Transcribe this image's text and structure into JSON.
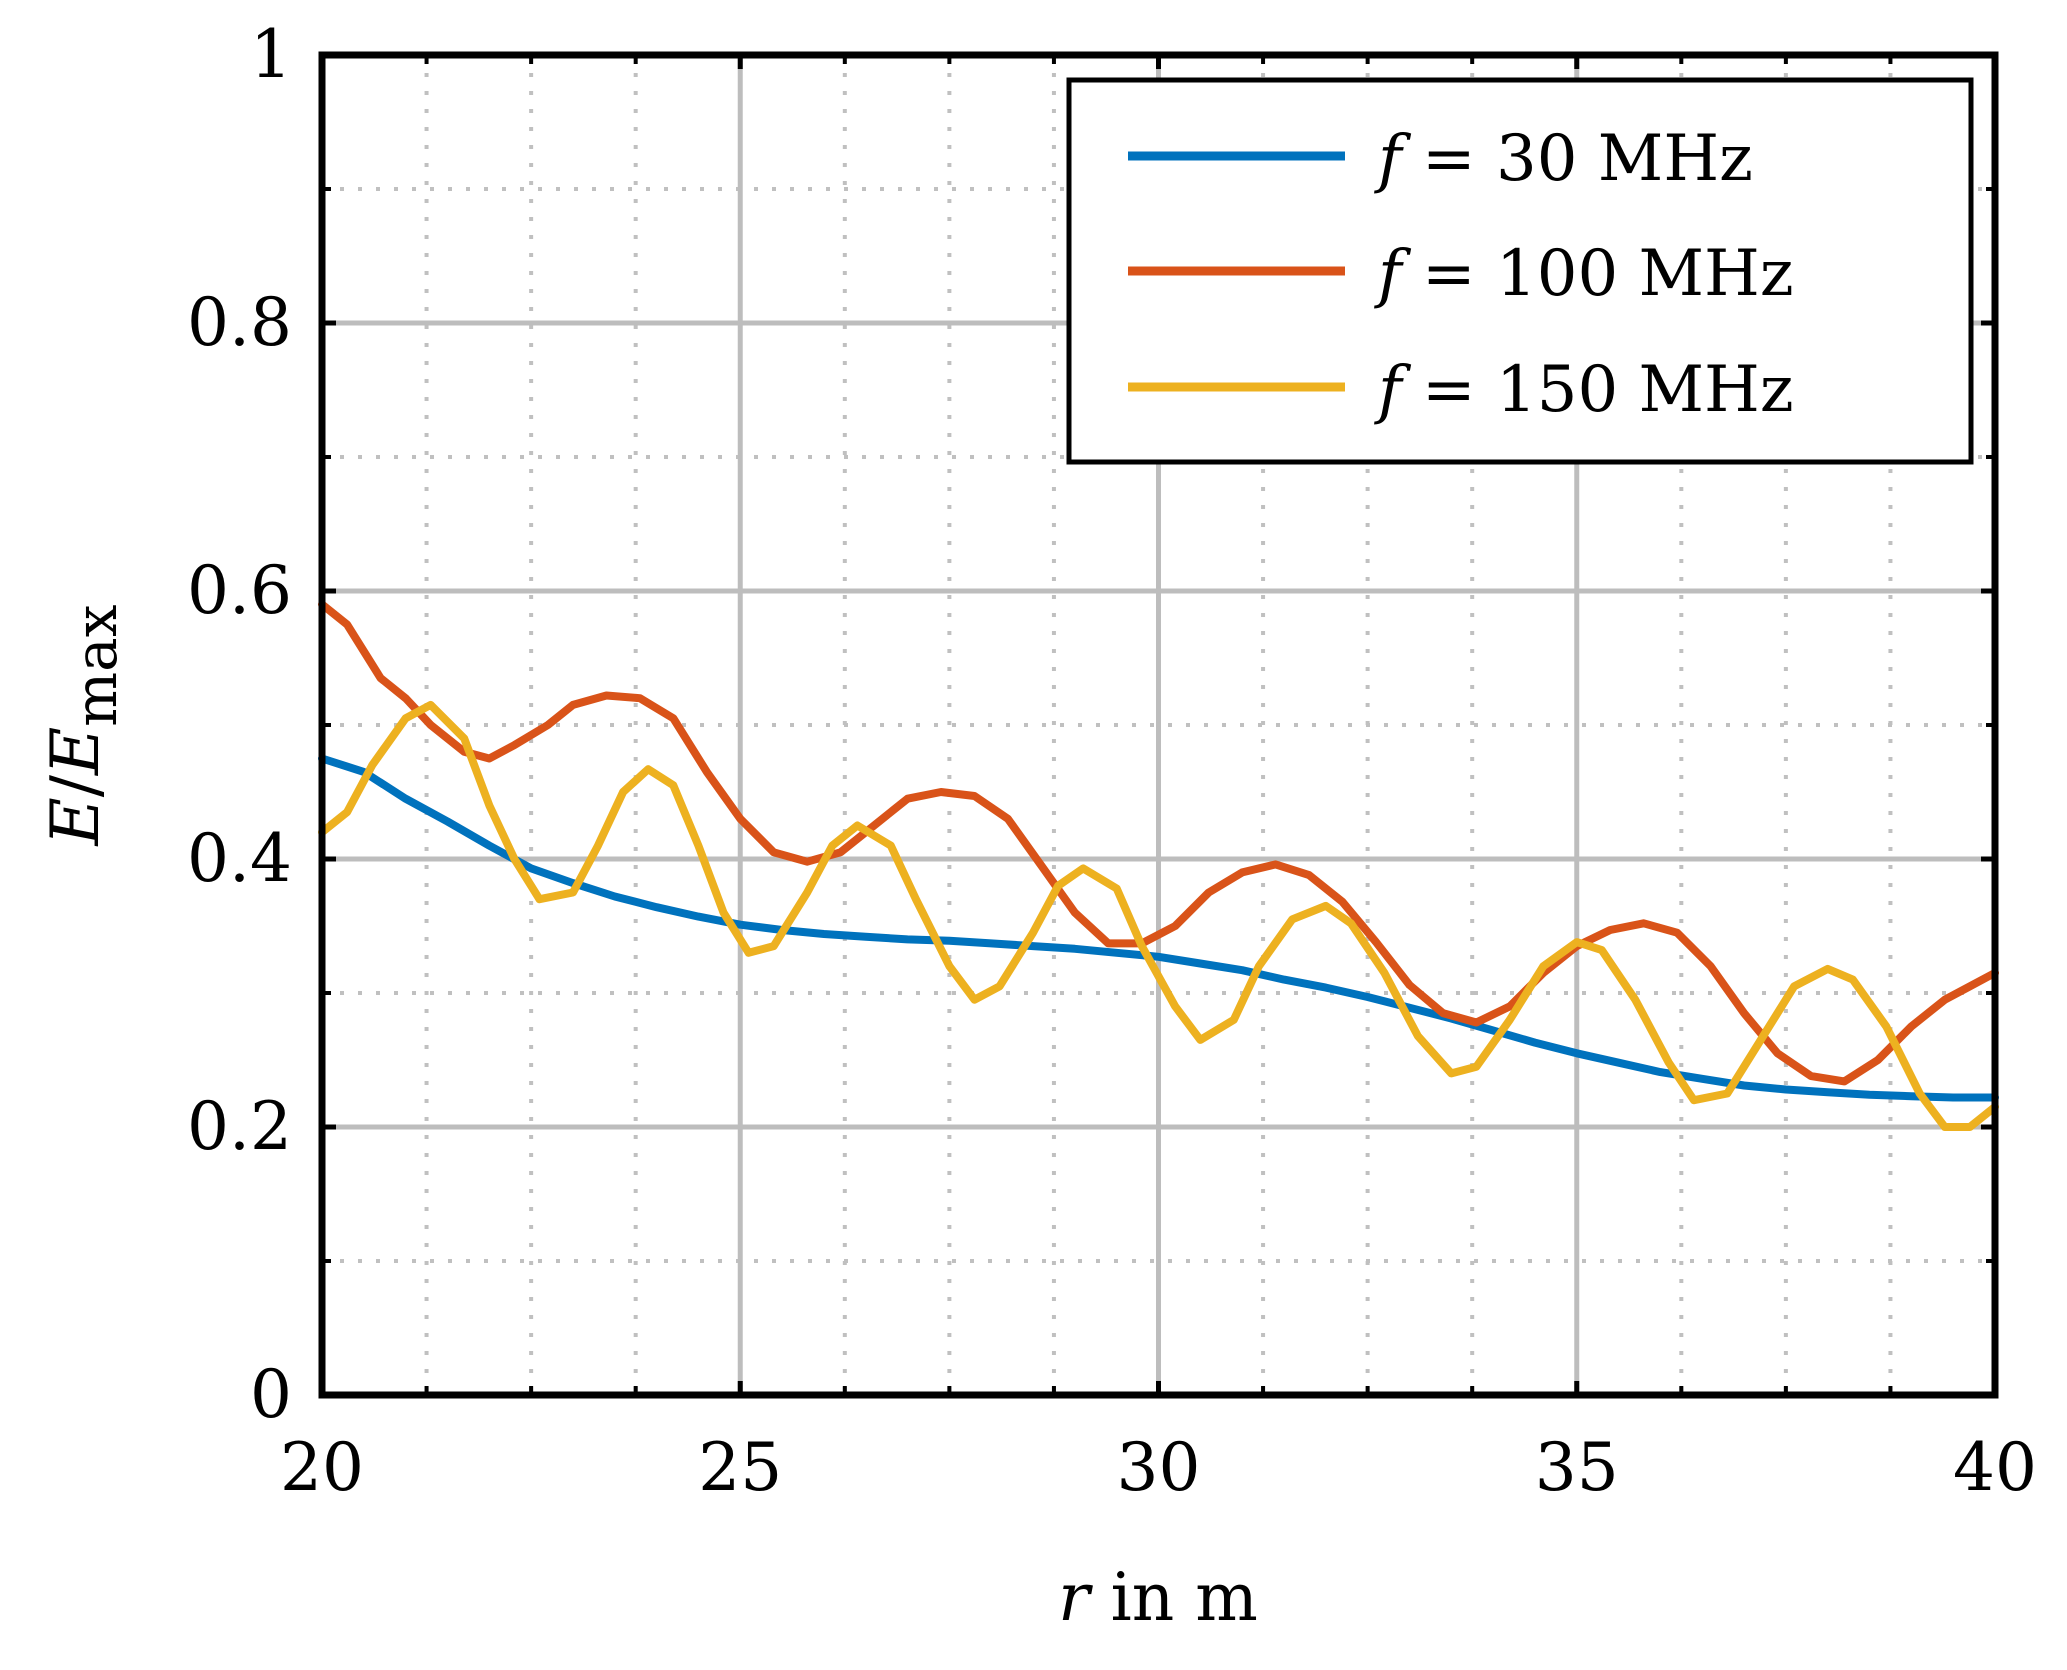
{
  "chart_data": {
    "type": "line",
    "title": "",
    "xlabel": {
      "var": "r",
      "unit": "in  m"
    },
    "ylabel": {
      "numerator": "E",
      "slash": "/",
      "denominator": "E",
      "subscript": "max"
    },
    "xlim": [
      20,
      40
    ],
    "ylim": [
      0,
      1
    ],
    "x_ticks": [
      20,
      25,
      30,
      35,
      40
    ],
    "y_ticks": [
      0,
      0.2,
      0.4,
      0.6,
      0.8,
      1
    ],
    "x_tick_labels": [
      "20",
      "25",
      "30",
      "35",
      "40"
    ],
    "y_tick_labels": [
      "0",
      "0.2",
      "0.4",
      "0.6",
      "0.8",
      "1"
    ],
    "x_minor_ticks": [
      21.25,
      22.5,
      23.75,
      26.25,
      27.5,
      28.75,
      31.25,
      32.5,
      33.75,
      36.25,
      37.5,
      38.75
    ],
    "y_minor_ticks": [
      0.1,
      0.3,
      0.5,
      0.7,
      0.9
    ],
    "grid": true,
    "legend_position": "top-right",
    "series": [
      {
        "name": "f = 30 MHz",
        "label_var": "f",
        "label_rest": " = 30 MHz",
        "color": "#0072bd",
        "points": [
          [
            20.0,
            0.475
          ],
          [
            20.5,
            0.465
          ],
          [
            21.0,
            0.445
          ],
          [
            21.5,
            0.428
          ],
          [
            22.0,
            0.41
          ],
          [
            22.5,
            0.393
          ],
          [
            23.0,
            0.382
          ],
          [
            23.5,
            0.372
          ],
          [
            24.0,
            0.364
          ],
          [
            24.5,
            0.357
          ],
          [
            25.0,
            0.351
          ],
          [
            25.5,
            0.347
          ],
          [
            26.0,
            0.344
          ],
          [
            26.5,
            0.342
          ],
          [
            27.0,
            0.34
          ],
          [
            27.5,
            0.339
          ],
          [
            28.0,
            0.337
          ],
          [
            28.5,
            0.335
          ],
          [
            29.0,
            0.333
          ],
          [
            29.5,
            0.33
          ],
          [
            30.0,
            0.327
          ],
          [
            30.5,
            0.322
          ],
          [
            31.0,
            0.317
          ],
          [
            31.5,
            0.31
          ],
          [
            32.0,
            0.304
          ],
          [
            32.5,
            0.297
          ],
          [
            33.0,
            0.289
          ],
          [
            33.5,
            0.281
          ],
          [
            34.0,
            0.272
          ],
          [
            34.5,
            0.263
          ],
          [
            35.0,
            0.255
          ],
          [
            35.5,
            0.248
          ],
          [
            36.0,
            0.241
          ],
          [
            36.5,
            0.236
          ],
          [
            37.0,
            0.231
          ],
          [
            37.5,
            0.228
          ],
          [
            38.0,
            0.226
          ],
          [
            38.5,
            0.224
          ],
          [
            39.0,
            0.223
          ],
          [
            39.5,
            0.222
          ],
          [
            40.0,
            0.222
          ]
        ]
      },
      {
        "name": "f = 100 MHz",
        "label_var": "f",
        "label_rest": " = 100 MHz",
        "color": "#d95319",
        "points": [
          [
            20.0,
            0.59
          ],
          [
            20.3,
            0.575
          ],
          [
            20.7,
            0.535
          ],
          [
            21.0,
            0.52
          ],
          [
            21.3,
            0.5
          ],
          [
            21.7,
            0.48
          ],
          [
            22.0,
            0.475
          ],
          [
            22.3,
            0.485
          ],
          [
            22.7,
            0.5
          ],
          [
            23.0,
            0.515
          ],
          [
            23.4,
            0.522
          ],
          [
            23.8,
            0.52
          ],
          [
            24.2,
            0.505
          ],
          [
            24.6,
            0.465
          ],
          [
            25.0,
            0.43
          ],
          [
            25.4,
            0.405
          ],
          [
            25.8,
            0.398
          ],
          [
            26.2,
            0.405
          ],
          [
            26.6,
            0.425
          ],
          [
            27.0,
            0.445
          ],
          [
            27.4,
            0.45
          ],
          [
            27.8,
            0.447
          ],
          [
            28.2,
            0.43
          ],
          [
            28.6,
            0.395
          ],
          [
            29.0,
            0.36
          ],
          [
            29.4,
            0.337
          ],
          [
            29.8,
            0.337
          ],
          [
            30.2,
            0.35
          ],
          [
            30.6,
            0.375
          ],
          [
            31.0,
            0.39
          ],
          [
            31.4,
            0.396
          ],
          [
            31.8,
            0.388
          ],
          [
            32.2,
            0.368
          ],
          [
            32.6,
            0.338
          ],
          [
            33.0,
            0.306
          ],
          [
            33.4,
            0.285
          ],
          [
            33.8,
            0.278
          ],
          [
            34.2,
            0.29
          ],
          [
            34.6,
            0.315
          ],
          [
            35.0,
            0.335
          ],
          [
            35.4,
            0.347
          ],
          [
            35.8,
            0.352
          ],
          [
            36.2,
            0.345
          ],
          [
            36.6,
            0.32
          ],
          [
            37.0,
            0.285
          ],
          [
            37.4,
            0.255
          ],
          [
            37.8,
            0.238
          ],
          [
            38.2,
            0.234
          ],
          [
            38.6,
            0.25
          ],
          [
            39.0,
            0.275
          ],
          [
            39.4,
            0.295
          ],
          [
            39.7,
            0.305
          ],
          [
            40.0,
            0.315
          ]
        ]
      },
      {
        "name": "f = 150 MHz",
        "label_var": "f",
        "label_rest": " = 150 MHz",
        "color": "#edb120",
        "points": [
          [
            20.0,
            0.42
          ],
          [
            20.3,
            0.435
          ],
          [
            20.6,
            0.47
          ],
          [
            21.0,
            0.505
          ],
          [
            21.3,
            0.515
          ],
          [
            21.7,
            0.49
          ],
          [
            22.0,
            0.44
          ],
          [
            22.3,
            0.4
          ],
          [
            22.6,
            0.37
          ],
          [
            23.0,
            0.375
          ],
          [
            23.3,
            0.41
          ],
          [
            23.6,
            0.45
          ],
          [
            23.9,
            0.467
          ],
          [
            24.2,
            0.455
          ],
          [
            24.5,
            0.41
          ],
          [
            24.8,
            0.36
          ],
          [
            25.1,
            0.33
          ],
          [
            25.4,
            0.335
          ],
          [
            25.8,
            0.375
          ],
          [
            26.1,
            0.41
          ],
          [
            26.4,
            0.425
          ],
          [
            26.8,
            0.41
          ],
          [
            27.1,
            0.37
          ],
          [
            27.5,
            0.32
          ],
          [
            27.8,
            0.295
          ],
          [
            28.1,
            0.305
          ],
          [
            28.5,
            0.345
          ],
          [
            28.8,
            0.38
          ],
          [
            29.1,
            0.393
          ],
          [
            29.5,
            0.378
          ],
          [
            29.8,
            0.335
          ],
          [
            30.2,
            0.29
          ],
          [
            30.5,
            0.265
          ],
          [
            30.9,
            0.28
          ],
          [
            31.2,
            0.32
          ],
          [
            31.6,
            0.355
          ],
          [
            32.0,
            0.365
          ],
          [
            32.3,
            0.352
          ],
          [
            32.7,
            0.315
          ],
          [
            33.1,
            0.268
          ],
          [
            33.5,
            0.24
          ],
          [
            33.8,
            0.245
          ],
          [
            34.2,
            0.28
          ],
          [
            34.6,
            0.32
          ],
          [
            35.0,
            0.338
          ],
          [
            35.3,
            0.332
          ],
          [
            35.7,
            0.295
          ],
          [
            36.1,
            0.248
          ],
          [
            36.4,
            0.22
          ],
          [
            36.8,
            0.225
          ],
          [
            37.2,
            0.265
          ],
          [
            37.6,
            0.305
          ],
          [
            38.0,
            0.318
          ],
          [
            38.3,
            0.31
          ],
          [
            38.7,
            0.275
          ],
          [
            39.1,
            0.225
          ],
          [
            39.4,
            0.2
          ],
          [
            39.7,
            0.2
          ],
          [
            40.0,
            0.215
          ]
        ]
      }
    ]
  }
}
